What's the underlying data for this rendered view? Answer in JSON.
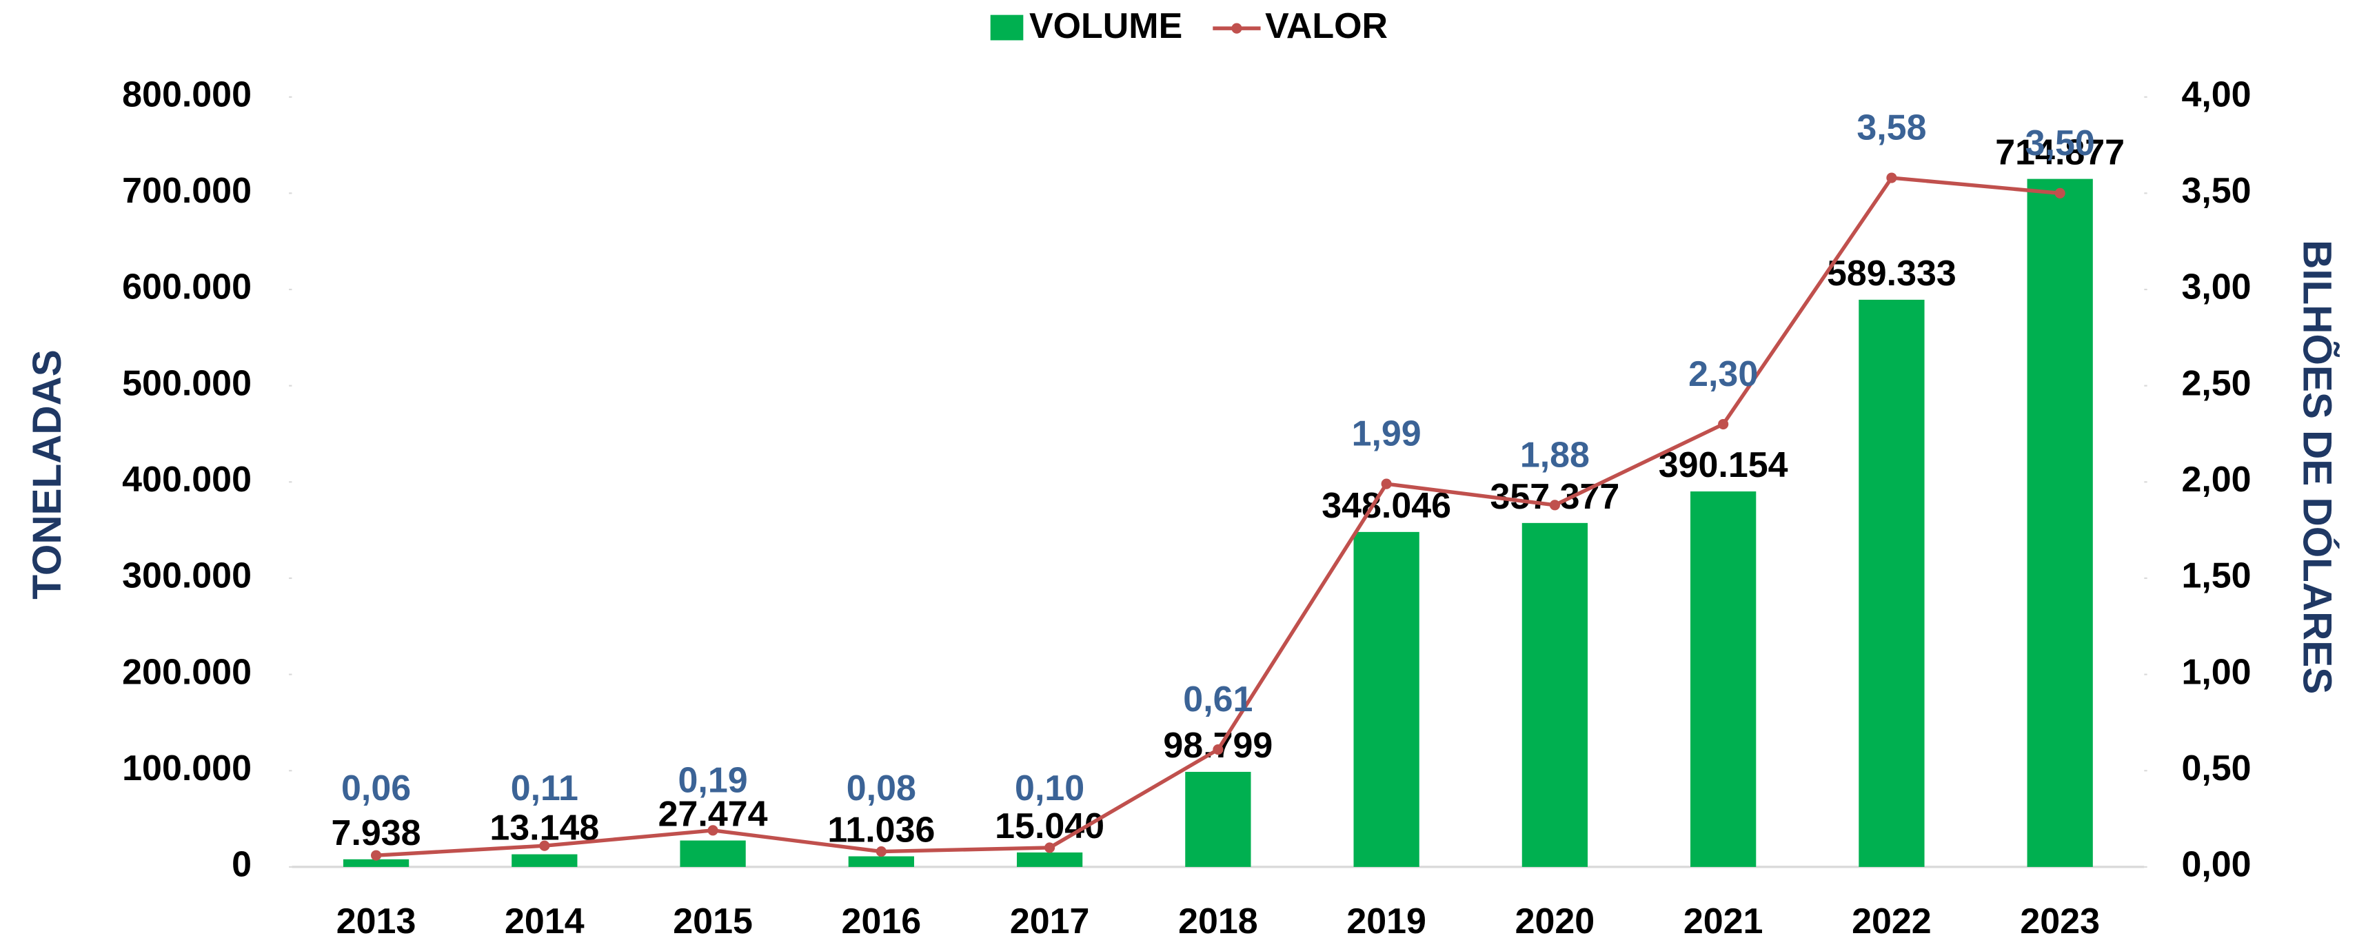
{
  "chart_data": {
    "type": "bar_line",
    "categories": [
      "2013",
      "2014",
      "2015",
      "2016",
      "2017",
      "2018",
      "2019",
      "2020",
      "2021",
      "2022",
      "2023"
    ],
    "series": [
      {
        "name": "VOLUME",
        "type": "bar",
        "color": "#00b050",
        "values": [
          7938,
          13148,
          27474,
          11036,
          15040,
          98799,
          348046,
          357377,
          390154,
          589333,
          714877
        ],
        "value_labels": [
          "7.938",
          "13.148",
          "27.474",
          "11.036",
          "15.040",
          "98.799",
          "348.046",
          "357.377",
          "390.154",
          "589.333",
          "714.877"
        ]
      },
      {
        "name": "VALOR",
        "type": "line",
        "axis": "y2",
        "color": "#c0504d",
        "values": [
          0.06,
          0.11,
          0.19,
          0.08,
          0.1,
          0.61,
          1.99,
          1.88,
          2.3,
          3.58,
          3.5
        ],
        "value_labels": [
          "0,06",
          "0,11",
          "0,19",
          "0,08",
          "0,10",
          "0,61",
          "1,99",
          "1,88",
          "2,30",
          "3,58",
          "3,50"
        ]
      }
    ],
    "ylabel": "TONELADAS",
    "y2label": "BILHÕES DE DÓLARES",
    "ylim": [
      0,
      800000
    ],
    "yticks": [
      0,
      {
        "value": 100000,
        "label": "100.000"
      },
      {
        "value": 200000,
        "label": "200.000"
      },
      {
        "value": 300000,
        "label": "300.000"
      },
      {
        "value": 400000,
        "label": "400.000"
      },
      {
        "value": 500000,
        "label": "500.000"
      },
      {
        "value": 600000,
        "label": "600.000"
      },
      {
        "value": 700000,
        "label": "700.000"
      },
      {
        "value": 800000,
        "label": "800.000"
      }
    ],
    "y2lim": [
      0,
      4
    ],
    "y2ticks": [
      {
        "value": 0,
        "label": "0,00"
      },
      {
        "value": 0.5,
        "label": "0,50"
      },
      {
        "value": 1,
        "label": "1,00"
      },
      {
        "value": 1.5,
        "label": "1,50"
      },
      {
        "value": 2,
        "label": "2,00"
      },
      {
        "value": 2.5,
        "label": "2,50"
      },
      {
        "value": 3,
        "label": "3,00"
      },
      {
        "value": 3.5,
        "label": "3,50"
      },
      {
        "value": 4,
        "label": "4,00"
      }
    ],
    "legend": "top"
  }
}
